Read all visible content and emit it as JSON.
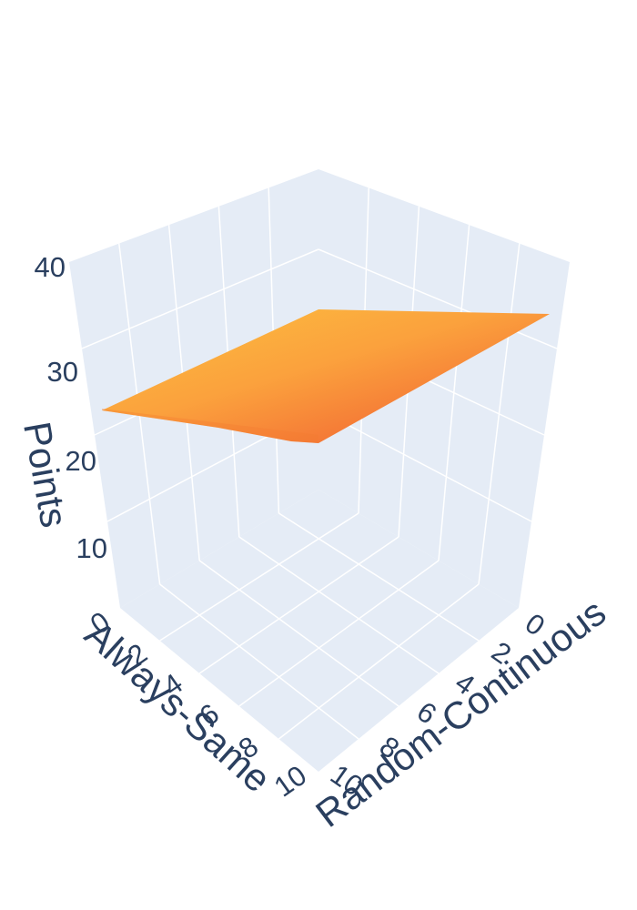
{
  "chart_data": {
    "type": "surface",
    "title": "",
    "x_axis": {
      "title": "Always-Same",
      "range": [
        0,
        10
      ],
      "ticks": [
        "0",
        "2",
        "4",
        "6",
        "8",
        "10"
      ]
    },
    "y_axis": {
      "title": "Random-Continuous",
      "range": [
        0,
        10
      ],
      "ticks": [
        "0",
        "2",
        "4",
        "6",
        "8",
        "10"
      ]
    },
    "z_axis": {
      "title": "Points",
      "range": [
        0,
        40
      ],
      "ticks": [
        "10",
        "20",
        "30",
        "40"
      ]
    },
    "surface_corners": [
      {
        "always_same": 0,
        "random_continuous": 0,
        "points": 28
      },
      {
        "always_same": 10,
        "random_continuous": 0,
        "points": 33
      },
      {
        "always_same": 0,
        "random_continuous": 10,
        "points": 34
      },
      {
        "always_same": 10,
        "random_continuous": 10,
        "points": 26
      }
    ],
    "colorscale": [
      "#f15a2b",
      "#fbb33f"
    ],
    "scene_background": "#e5ecf6",
    "grid_color": "#ffffff",
    "text_color": "#2a3f5f"
  }
}
